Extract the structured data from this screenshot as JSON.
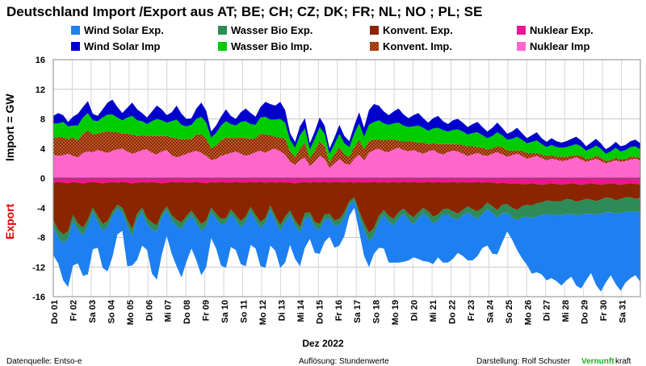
{
  "title": "Deutschland Import /Export aus AT; BE; CH; CZ; DK; FR; NL; NO ; PL; SE",
  "legend": [
    {
      "label": "Wind Solar Exp.",
      "color": "#1e7ff0",
      "icon": "square"
    },
    {
      "label": "Wasser Bio Exp.",
      "color": "#2e8b57",
      "icon": "square"
    },
    {
      "label": "Konvent. Exp.",
      "color": "#8b2500",
      "icon": "square"
    },
    {
      "label": "Nuklear Exp.",
      "color": "#ee1493",
      "icon": "square"
    },
    {
      "label": "Wind Solar Imp",
      "color": "#0000cc",
      "icon": "square"
    },
    {
      "label": "Wasser Bio Imp.",
      "color": "#00cc00",
      "icon": "square"
    },
    {
      "label": "Konvent. Imp.",
      "color": "#8b2500",
      "icon": "dotted-square"
    },
    {
      "label": "Nuklear Imp",
      "color": "#ff66cc",
      "icon": "square"
    }
  ],
  "y_axis_import_label": "Import    = GW",
  "y_axis_export_label": "Export",
  "x_axis_label": "Dez 2022",
  "footer": {
    "source": "Datenquelle: Entso-e",
    "resolution": "Auflösung: Stundenwerte",
    "author": "Darstellung:  Rolf Schuster",
    "brand_green": "Vernunft",
    "brand_rest": "kraft"
  },
  "chart_data": {
    "type": "area",
    "ylim": [
      -16,
      16
    ],
    "yticks": [
      16,
      12,
      8,
      4,
      0,
      -4,
      -8,
      -12,
      -16
    ],
    "grid": true,
    "legend_position": "top",
    "x_ticks": [
      "Do 01",
      "Fr 02",
      "Sa 03",
      "So 04",
      "Mo 05",
      "Di 06",
      "Mi 07",
      "Do 08",
      "Fr 09",
      "Sa 10",
      "So 11",
      "Mo 12",
      "Di 13",
      "Mi 14",
      "Do 15",
      "Fr 16",
      "Sa 17",
      "So 18",
      "Mo 19",
      "Di 20",
      "Mi 21",
      "Do 22",
      "Fr 23",
      "Sa 24",
      "So 25",
      "Mo 26",
      "Di 27",
      "Mi 28",
      "Do 29",
      "Fr 30",
      "Sa 31"
    ],
    "resolution_per_day": 4,
    "import_series": [
      {
        "name": "Nuklear Imp",
        "color": "#ff66cc",
        "values": [
          3.2,
          3.0,
          3.1,
          3.3,
          3.0,
          2.8,
          3.4,
          3.6,
          3.5,
          3.8,
          3.6,
          3.4,
          3.7,
          3.9,
          4.0,
          3.6,
          3.3,
          3.5,
          3.8,
          3.9,
          3.4,
          3.2,
          3.6,
          3.8,
          3.1,
          2.8,
          3.0,
          3.3,
          3.5,
          3.7,
          3.4,
          3.0,
          2.4,
          2.6,
          3.0,
          3.2,
          3.4,
          3.6,
          3.3,
          3.0,
          3.2,
          3.5,
          3.7,
          3.4,
          3.8,
          4.0,
          3.6,
          3.2,
          2.2,
          1.8,
          2.4,
          2.8,
          1.6,
          2.2,
          3.0,
          2.6,
          1.4,
          2.0,
          2.6,
          2.0,
          1.8,
          2.6,
          3.2,
          2.4,
          3.4,
          3.8,
          4.0,
          3.6,
          3.5,
          3.9,
          4.1,
          3.8,
          3.6,
          3.8,
          3.5,
          3.3,
          3.6,
          3.8,
          3.4,
          3.2,
          3.5,
          3.7,
          3.6,
          3.3,
          3.0,
          3.2,
          3.4,
          3.1,
          3.0,
          3.3,
          3.5,
          3.2,
          2.9,
          3.1,
          3.3,
          3.0,
          2.6,
          2.8,
          3.0,
          2.7,
          2.4,
          2.6,
          2.5,
          2.3,
          2.4,
          2.6,
          2.8,
          2.5,
          2.2,
          2.4,
          2.6,
          2.3,
          2.0,
          2.2,
          2.4,
          2.2,
          2.3,
          2.5,
          2.6,
          2.4
        ]
      },
      {
        "name": "Konvent. Imp.",
        "color": "#8b2500",
        "values": [
          2.2,
          2.6,
          2.4,
          2.0,
          2.5,
          2.3,
          2.6,
          2.8,
          2.4,
          2.2,
          2.6,
          2.9,
          2.5,
          2.3,
          2.0,
          2.4,
          2.6,
          2.2,
          2.0,
          1.8,
          2.3,
          2.5,
          2.1,
          1.9,
          2.4,
          2.6,
          2.2,
          2.0,
          1.8,
          2.2,
          2.5,
          2.3,
          1.6,
          1.8,
          2.1,
          2.3,
          2.0,
          1.8,
          2.2,
          2.4,
          2.1,
          1.9,
          2.3,
          2.5,
          2.0,
          1.6,
          1.9,
          2.1,
          1.4,
          1.0,
          1.6,
          1.9,
          1.1,
          1.5,
          2.0,
          1.7,
          0.8,
          1.2,
          1.6,
          1.2,
          1.1,
          1.6,
          2.0,
          1.5,
          1.6,
          1.4,
          1.2,
          1.5,
          1.7,
          1.3,
          1.0,
          1.2,
          1.4,
          1.1,
          1.3,
          1.5,
          1.0,
          0.9,
          1.2,
          1.4,
          1.1,
          0.9,
          1.0,
          1.2,
          1.3,
          1.1,
          0.8,
          1.0,
          0.9,
          0.7,
          0.8,
          1.0,
          0.9,
          0.6,
          0.5,
          0.7,
          0.8,
          0.6,
          0.4,
          0.5,
          0.6,
          0.5,
          0.4,
          0.6,
          0.5,
          0.4,
          0.3,
          0.5,
          0.4,
          0.3,
          0.4,
          0.5,
          0.3,
          0.2,
          0.4,
          0.3,
          0.3,
          0.4,
          0.3,
          0.3
        ]
      },
      {
        "name": "Wasser Bio Imp.",
        "color": "#00cc00",
        "values": [
          2.0,
          1.8,
          2.1,
          1.7,
          1.6,
          2.0,
          2.2,
          2.4,
          1.9,
          1.7,
          2.0,
          2.3,
          2.4,
          2.0,
          1.8,
          2.2,
          2.5,
          2.1,
          1.9,
          1.6,
          2.0,
          2.3,
          2.1,
          1.8,
          2.2,
          2.5,
          2.0,
          1.7,
          1.9,
          2.1,
          2.4,
          2.2,
          1.5,
          1.7,
          2.0,
          2.2,
          1.9,
          1.7,
          2.1,
          2.3,
          2.0,
          1.8,
          2.2,
          2.4,
          2.1,
          2.3,
          2.5,
          2.2,
          1.6,
          1.3,
          1.8,
          2.0,
          1.2,
          1.6,
          1.9,
          1.7,
          1.1,
          1.4,
          1.8,
          1.5,
          1.3,
          1.8,
          2.2,
          1.7,
          2.2,
          2.4,
          2.6,
          2.3,
          2.0,
          2.2,
          2.4,
          2.1,
          1.9,
          2.1,
          2.3,
          2.0,
          1.8,
          2.0,
          2.2,
          1.9,
          1.7,
          1.9,
          2.0,
          1.8,
          1.6,
          1.8,
          2.0,
          1.7,
          1.5,
          1.7,
          1.9,
          1.6,
          1.4,
          1.6,
          1.8,
          1.5,
          1.3,
          1.5,
          1.7,
          1.4,
          1.2,
          1.4,
          1.3,
          1.2,
          1.3,
          1.4,
          1.5,
          1.3,
          1.1,
          1.3,
          1.4,
          1.2,
          1.0,
          1.2,
          1.3,
          1.1,
          1.2,
          1.3,
          1.4,
          1.2
        ]
      },
      {
        "name": "Wind Solar Imp",
        "color": "#0000cc",
        "values": [
          1.0,
          1.4,
          0.9,
          0.6,
          1.2,
          1.6,
          1.4,
          1.6,
          0.9,
          0.7,
          1.1,
          1.6,
          2.0,
          1.4,
          1.0,
          1.3,
          1.8,
          1.5,
          1.1,
          0.9,
          1.3,
          1.8,
          1.5,
          1.0,
          1.2,
          1.9,
          1.5,
          1.0,
          0.9,
          1.4,
          1.9,
          1.6,
          0.8,
          1.0,
          1.2,
          1.6,
          1.1,
          0.9,
          1.3,
          1.7,
          1.5,
          1.1,
          1.4,
          2.0,
          2.1,
          1.9,
          2.3,
          1.7,
          0.9,
          0.8,
          1.2,
          1.4,
          0.8,
          1.0,
          1.3,
          1.1,
          0.7,
          0.9,
          1.2,
          1.0,
          0.8,
          1.1,
          1.5,
          1.2,
          2.0,
          2.4,
          2.0,
          1.6,
          1.3,
          1.6,
          1.9,
          1.5,
          1.2,
          1.5,
          1.7,
          1.3,
          1.1,
          1.4,
          1.6,
          1.2,
          1.0,
          1.3,
          1.4,
          1.2,
          1.0,
          1.2,
          1.4,
          1.1,
          0.9,
          1.1,
          1.3,
          1.0,
          0.8,
          1.0,
          1.2,
          0.9,
          0.7,
          0.9,
          1.1,
          0.8,
          0.7,
          0.9,
          0.8,
          0.7,
          0.8,
          0.9,
          1.0,
          0.8,
          0.6,
          0.8,
          0.9,
          0.7,
          0.6,
          0.7,
          0.8,
          0.7,
          0.7,
          0.8,
          0.9,
          0.8
        ]
      }
    ],
    "export_series": [
      {
        "name": "Nuklear Exp.",
        "color": "#ee1493",
        "values": [
          0.6,
          0.5,
          0.6,
          0.7,
          0.5,
          0.6,
          0.7,
          0.6,
          0.5,
          0.6,
          0.7,
          0.6,
          0.5,
          0.6,
          0.5,
          0.6,
          0.7,
          0.6,
          0.5,
          0.6,
          0.5,
          0.6,
          0.7,
          0.6,
          0.5,
          0.6,
          0.5,
          0.6,
          0.6,
          0.5,
          0.6,
          0.7,
          0.5,
          0.6,
          0.5,
          0.6,
          0.6,
          0.5,
          0.6,
          0.6,
          0.5,
          0.6,
          0.5,
          0.6,
          0.5,
          0.6,
          0.5,
          0.6,
          0.6,
          0.7,
          0.6,
          0.5,
          0.6,
          0.5,
          0.6,
          0.5,
          0.6,
          0.5,
          0.5,
          0.6,
          0.5,
          0.6,
          0.5,
          0.6,
          0.6,
          0.5,
          0.6,
          0.5,
          0.6,
          0.5,
          0.6,
          0.5,
          0.6,
          0.5,
          0.6,
          0.6,
          0.5,
          0.6,
          0.5,
          0.6,
          0.6,
          0.5,
          0.6,
          0.5,
          0.6,
          0.6,
          0.5,
          0.6,
          0.5,
          0.6,
          0.7,
          0.6,
          0.7,
          0.8,
          0.7,
          0.8,
          0.8,
          0.7,
          0.8,
          0.9,
          0.8,
          0.7,
          0.8,
          0.9,
          0.8,
          0.7,
          0.8,
          0.9,
          0.8,
          0.7,
          0.8,
          0.9,
          0.8,
          0.7,
          0.8,
          0.9,
          0.8,
          0.7,
          0.8,
          0.8
        ]
      },
      {
        "name": "Konvent. Exp.",
        "color": "#8b2500",
        "values": [
          5.0,
          6.5,
          7.0,
          6.5,
          4.5,
          5.5,
          6.0,
          5.0,
          3.5,
          4.5,
          5.5,
          5.2,
          4.0,
          3.0,
          3.5,
          5.0,
          6.2,
          4.2,
          3.5,
          4.8,
          5.5,
          5.8,
          4.0,
          3.2,
          4.5,
          5.0,
          5.5,
          4.5,
          3.8,
          4.8,
          5.6,
          5.0,
          3.5,
          4.2,
          5.0,
          4.8,
          3.6,
          4.5,
          5.2,
          4.6,
          3.4,
          4.4,
          5.4,
          4.8,
          3.2,
          4.5,
          5.8,
          4.6,
          3.8,
          5.0,
          6.0,
          4.2,
          4.0,
          5.4,
          5.6,
          4.4,
          4.2,
          5.2,
          5.0,
          4.0,
          2.6,
          2.0,
          4.0,
          5.5,
          6.8,
          6.2,
          4.5,
          3.8,
          4.5,
          5.0,
          4.0,
          3.6,
          4.2,
          4.8,
          4.0,
          3.4,
          4.0,
          4.6,
          4.4,
          3.6,
          3.5,
          4.0,
          4.2,
          3.8,
          3.2,
          3.6,
          4.0,
          3.4,
          2.8,
          3.2,
          3.6,
          3.0,
          2.8,
          3.2,
          3.6,
          3.0,
          2.8,
          3.0,
          2.6,
          2.4,
          2.2,
          2.4,
          2.3,
          2.2,
          2.0,
          2.2,
          2.4,
          2.1,
          2.0,
          2.2,
          2.3,
          2.0,
          1.8,
          2.0,
          2.2,
          1.9,
          1.8,
          1.9,
          2.0,
          1.8
        ]
      },
      {
        "name": "Wasser Bio Exp.",
        "color": "#2e8b57",
        "values": [
          0.8,
          1.0,
          1.2,
          1.0,
          0.8,
          0.9,
          1.0,
          0.9,
          0.6,
          0.8,
          0.9,
          0.8,
          0.6,
          0.5,
          0.6,
          0.8,
          0.9,
          0.7,
          0.6,
          0.8,
          0.9,
          0.8,
          0.6,
          0.5,
          0.7,
          0.8,
          0.9,
          0.7,
          0.6,
          0.8,
          0.9,
          0.8,
          0.6,
          0.7,
          0.8,
          0.7,
          0.6,
          0.7,
          0.8,
          0.7,
          0.6,
          0.7,
          0.8,
          0.7,
          0.6,
          0.7,
          0.8,
          0.7,
          0.6,
          0.7,
          0.8,
          0.7,
          0.6,
          0.7,
          0.8,
          0.7,
          0.6,
          0.7,
          0.8,
          0.7,
          0.5,
          0.4,
          0.7,
          0.9,
          1.1,
          1.0,
          0.8,
          0.7,
          0.8,
          0.9,
          0.8,
          0.7,
          0.8,
          0.9,
          0.8,
          0.7,
          0.8,
          0.9,
          0.8,
          0.7,
          0.8,
          0.9,
          0.8,
          0.7,
          0.8,
          0.9,
          1.0,
          0.9,
          0.8,
          0.9,
          1.0,
          1.1,
          1.2,
          1.3,
          1.4,
          1.5,
          1.6,
          1.7,
          1.8,
          1.7,
          1.8,
          1.9,
          1.8,
          1.9,
          2.0,
          1.9,
          1.8,
          1.9,
          2.0,
          1.9,
          1.8,
          1.9,
          2.0,
          1.9,
          1.8,
          1.9,
          2.0,
          1.9,
          1.8,
          1.9
        ]
      },
      {
        "name": "Wind Solar Exp.",
        "color": "#1e7ff0",
        "values": [
          4.0,
          3.5,
          5.0,
          6.5,
          6.0,
          4.5,
          5.5,
          6.5,
          5.0,
          3.5,
          5.0,
          6.0,
          5.5,
          3.5,
          2.5,
          5.5,
          4.0,
          5.5,
          4.5,
          3.5,
          6.0,
          6.5,
          5.0,
          3.5,
          4.5,
          5.5,
          6.5,
          5.5,
          4.5,
          5.0,
          6.0,
          5.5,
          3.5,
          4.0,
          5.5,
          6.0,
          4.5,
          4.0,
          5.0,
          6.0,
          4.5,
          3.8,
          5.2,
          6.0,
          4.8,
          4.0,
          5.0,
          5.5,
          4.0,
          4.5,
          4.5,
          4.0,
          3.0,
          3.5,
          3.2,
          3.0,
          2.5,
          3.0,
          2.8,
          2.5,
          1.5,
          1.0,
          2.0,
          3.5,
          3.5,
          2.5,
          3.5,
          4.5,
          5.5,
          5.0,
          6.0,
          6.5,
          5.5,
          4.5,
          5.5,
          6.5,
          6.0,
          5.5,
          5.0,
          6.5,
          6.5,
          5.5,
          4.5,
          5.5,
          6.5,
          6.0,
          5.0,
          4.5,
          5.0,
          5.5,
          5.0,
          4.0,
          2.5,
          3.0,
          4.0,
          5.5,
          6.5,
          7.5,
          7.5,
          8.0,
          9.0,
          8.5,
          9.0,
          9.5,
          9.0,
          8.5,
          9.5,
          10.0,
          9.0,
          8.0,
          9.5,
          10.5,
          9.5,
          8.5,
          9.5,
          10.5,
          9.5,
          9.0,
          8.5,
          9.5
        ]
      }
    ]
  }
}
